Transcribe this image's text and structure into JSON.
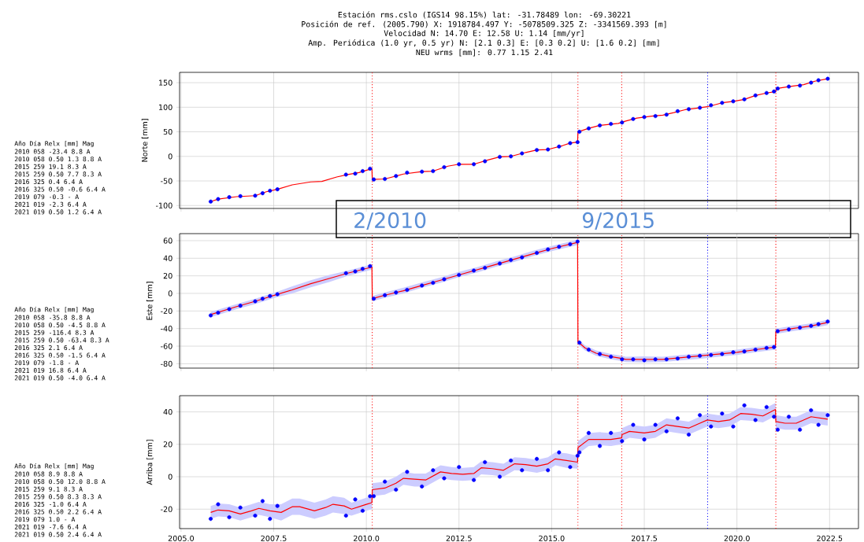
{
  "chart_data": [
    {
      "type": "scatter",
      "title": "Estación rms.cslo (IGS14 98.15%) lat: -31.78489 lon: -69.30221",
      "subtitle": "Posición de ref. (2005.790) X: 1918784.497 Y: -5078509.325 Z: -3341569.393 [m]",
      "ylabel": "Norte [mm]",
      "annotations": [
        "Velocidad N: 14.70 E: 12.58 U: 1.14 [mm/yr]",
        "Amp. Periódica (1.0 yr, 0.5 yr) N: [2.1 0.3] E: [0.3 0.2] U: [1.6 0.2] [mm]",
        "NEU wrms [mm]: 0.77 1.15 2.41",
        "Año Día Relx [mm] Mag",
        "2010 058 -23.4 8.8 A",
        "2010 058 0.50 1.3 8.8 A",
        "2015 259 19.1 8.3 A",
        "2015 259 0.50 7.7 8.3 A",
        "2016 325 0.4 6.4 A",
        "2016 325 0.50 -0.6 6.4 A",
        "2019 079 -0.3 - A",
        "2021 019 -2.3 6.4 A",
        "2021 019 0.50 1.2 6.4 A",
        "2/2010",
        "9/2015"
      ],
      "marker": "circle",
      "xlim": [
        2004.96,
        2023.28
      ],
      "ylim": [
        -106,
        171
      ],
      "xticks": [
        2005,
        2007.5,
        2010,
        2012.5,
        2015,
        2017.5,
        2020,
        2022.5
      ],
      "yticks": [
        -100,
        -50,
        0,
        50,
        100,
        150
      ],
      "tick_labels": "y",
      "grid": true,
      "ref_lines": [
        {
          "axis": "x",
          "value": 2010.16,
          "color": "#ff0000",
          "line_style": "dotted"
        },
        {
          "axis": "x",
          "value": 2015.71,
          "color": "#ff0000",
          "line_style": "dotted"
        },
        {
          "axis": "x",
          "value": 2016.89,
          "color": "#ff0000",
          "line_style": "dotted"
        },
        {
          "axis": "x",
          "value": 2019.21,
          "color": "#0000ff",
          "line_style": "dotted"
        },
        {
          "axis": "x",
          "value": 2021.05,
          "color": "#ff0000",
          "line_style": "dotted"
        }
      ],
      "series": [
        {
          "color": "#0000ff",
          "x": [
            2005.8,
            2006.0,
            2006.3,
            2006.6,
            2007.0,
            2007.2,
            2007.4,
            2007.6,
            2009.45,
            2009.7,
            2009.9,
            2010.1,
            2010.2,
            2010.5,
            2010.8,
            2011.1,
            2011.5,
            2011.8,
            2012.1,
            2012.5,
            2012.9,
            2013.2,
            2013.6,
            2013.9,
            2014.2,
            2014.6,
            2014.9,
            2015.2,
            2015.5,
            2015.7,
            2015.75,
            2016.0,
            2016.3,
            2016.6,
            2016.9,
            2017.2,
            2017.5,
            2017.8,
            2018.1,
            2018.4,
            2018.7,
            2019.0,
            2019.3,
            2019.6,
            2019.9,
            2020.2,
            2020.5,
            2020.8,
            2021.0,
            2021.1,
            2021.4,
            2021.7,
            2022.0,
            2022.2,
            2022.45
          ],
          "values": [
            -92,
            -87,
            -83,
            -81,
            -80,
            -75,
            -70,
            -67,
            -37,
            -35,
            -30,
            -25,
            -47,
            -46,
            -40,
            -33,
            -31,
            -30,
            -22,
            -16,
            -16,
            -10,
            -1,
            0,
            6,
            13,
            14,
            20,
            27,
            29,
            50,
            57,
            63,
            66,
            69,
            76,
            80,
            82,
            85,
            92,
            96,
            99,
            104,
            109,
            112,
            116,
            124,
            129,
            132,
            138,
            142,
            144,
            150,
            155,
            158
          ]
        },
        {
          "type": "line",
          "color": "#ff0000",
          "line_style": "solid",
          "marker": "none",
          "x": [
            2005.8,
            2006.0,
            2006.5,
            2007.0,
            2007.3,
            2007.6,
            2008.0,
            2008.5,
            2008.8,
            2009.2,
            2009.5,
            2009.8,
            2010.15,
            2010.16,
            2010.5,
            2011.0,
            2011.5,
            2011.8,
            2012.2,
            2012.5,
            2012.9,
            2013.3,
            2013.6,
            2013.9,
            2014.3,
            2014.6,
            2014.9,
            2015.3,
            2015.5,
            2015.7,
            2015.71,
            2016.0,
            2016.3,
            2016.8,
            2017.0,
            2017.3,
            2017.7,
            2018.0,
            2018.3,
            2018.6,
            2018.9,
            2019.2,
            2019.6,
            2019.9,
            2020.2,
            2020.5,
            2020.8,
            2021.05,
            2021.06,
            2021.4,
            2021.8,
            2022.1,
            2022.45
          ],
          "values": [
            -92,
            -87,
            -82,
            -80,
            -72,
            -67,
            -58,
            -52,
            -51,
            -42,
            -37,
            -33,
            -25,
            -47,
            -46,
            -36,
            -31,
            -30,
            -20,
            -16,
            -16,
            -7,
            -1,
            0,
            8,
            13,
            14,
            22,
            27,
            29,
            50,
            57,
            63,
            67,
            72,
            78,
            82,
            84,
            89,
            95,
            98,
            101,
            109,
            112,
            116,
            124,
            129,
            132,
            138,
            142,
            146,
            153,
            158
          ]
        }
      ]
    },
    {
      "type": "scatter",
      "ylabel": "Este [mm]",
      "annotations": [
        "Año Día Relx [mm] Mag",
        "2010 058 -35.8 8.8 A",
        "2010 058 0.50 -4.5 8.8 A",
        "2015 259 -116.4 8.3 A",
        "2015 259 0.50 -63.4 8.3 A",
        "2016 325 2.1 6.4 A",
        "2016 325 0.50 -1.5 6.4 A",
        "2019 079 -1.8 - A",
        "2021 019 16.8 6.4 A",
        "2021 019 0.50 -4.0 6.4 A"
      ],
      "marker": "circle",
      "xlim": [
        2004.96,
        2023.28
      ],
      "ylim": [
        -85,
        68
      ],
      "xticks": [
        2005,
        2007.5,
        2010,
        2012.5,
        2015,
        2017.5,
        2020,
        2022.5
      ],
      "yticks": [
        -80,
        -60,
        -40,
        -20,
        0,
        20,
        40,
        60
      ],
      "tick_labels": "y",
      "grid": true,
      "ref_lines": [
        {
          "axis": "x",
          "value": 2010.16,
          "color": "#ff0000",
          "line_style": "dotted"
        },
        {
          "axis": "x",
          "value": 2015.71,
          "color": "#ff0000",
          "line_style": "dotted"
        },
        {
          "axis": "x",
          "value": 2016.89,
          "color": "#ff0000",
          "line_style": "dotted"
        },
        {
          "axis": "x",
          "value": 2019.21,
          "color": "#0000ff",
          "line_style": "dotted"
        },
        {
          "axis": "x",
          "value": 2021.05,
          "color": "#ff0000",
          "line_style": "dotted"
        }
      ],
      "series": [
        {
          "color": "#0000ff",
          "x": [
            2005.8,
            2006.0,
            2006.3,
            2006.6,
            2007.0,
            2007.2,
            2007.4,
            2007.6,
            2009.45,
            2009.7,
            2009.9,
            2010.1,
            2010.2,
            2010.5,
            2010.8,
            2011.1,
            2011.5,
            2011.8,
            2012.1,
            2012.5,
            2012.9,
            2013.2,
            2013.6,
            2013.9,
            2014.2,
            2014.6,
            2014.9,
            2015.2,
            2015.5,
            2015.7,
            2015.75,
            2016.0,
            2016.3,
            2016.6,
            2016.9,
            2017.2,
            2017.5,
            2017.8,
            2018.1,
            2018.4,
            2018.7,
            2019.0,
            2019.3,
            2019.6,
            2019.9,
            2020.2,
            2020.5,
            2020.8,
            2021.0,
            2021.1,
            2021.4,
            2021.7,
            2022.0,
            2022.2,
            2022.45
          ],
          "values": [
            -25,
            -22,
            -18,
            -14,
            -9,
            -6,
            -3,
            -1,
            23,
            25,
            28,
            31,
            -6,
            -2,
            1,
            4,
            9,
            12,
            16,
            21,
            26,
            29,
            34,
            38,
            41,
            46,
            50,
            53,
            56,
            59,
            -56,
            -64,
            -69,
            -72,
            -75,
            -75,
            -76,
            -75,
            -75,
            -74,
            -72,
            -71,
            -70,
            -69,
            -67,
            -66,
            -64,
            -62,
            -61,
            -43,
            -41,
            -39,
            -37,
            -35,
            -32
          ]
        },
        {
          "type": "line",
          "color": "#ff0000",
          "line_style": "solid",
          "marker": "none",
          "x": [
            2005.8,
            2006.5,
            2007.0,
            2007.6,
            2008.0,
            2008.5,
            2009.0,
            2009.5,
            2010.15,
            2010.16,
            2010.5,
            2011.0,
            2011.5,
            2012.0,
            2012.5,
            2013.0,
            2013.5,
            2014.0,
            2014.5,
            2015.0,
            2015.7,
            2015.71,
            2015.9,
            2016.2,
            2016.6,
            2016.89,
            2017.0,
            2017.5,
            2018.0,
            2018.5,
            2019.0,
            2019.5,
            2020.0,
            2020.5,
            2021.04,
            2021.05,
            2021.5,
            2022.0,
            2022.45
          ],
          "values": [
            -24,
            -15,
            -9,
            -1,
            4,
            11,
            17,
            23,
            30,
            -6,
            -2,
            3,
            9,
            15,
            21,
            27,
            33,
            39,
            45,
            51,
            58,
            -55,
            -62,
            -68,
            -72,
            -74,
            -75,
            -75,
            -75,
            -73,
            -71,
            -69,
            -67,
            -64,
            -61,
            -43,
            -40,
            -37,
            -33
          ],
          "lower": [
            -27,
            -18,
            -12,
            -4,
            0,
            7,
            13,
            20,
            27,
            -9,
            -5,
            0,
            6.5,
            12,
            18.5,
            24,
            30.5,
            36,
            42.5,
            48,
            55,
            -58,
            -65,
            -71,
            -75,
            -77,
            -78,
            -78.5,
            -78,
            -76,
            -74.5,
            -72,
            -70,
            -67,
            -64,
            -46,
            -43,
            -40,
            -36
          ],
          "upper": [
            -21,
            -12,
            -6,
            2,
            8,
            15,
            21,
            26,
            33,
            -3,
            1,
            6.5,
            12.5,
            18,
            24.5,
            30,
            36.5,
            42,
            48.5,
            54,
            61,
            -52,
            -59,
            -65,
            -69,
            -71,
            -72,
            -71.5,
            -72,
            -70,
            -68.5,
            -66,
            -64,
            -61,
            -58,
            -40,
            -37,
            -34,
            -30
          ]
        }
      ]
    },
    {
      "type": "scatter",
      "ylabel": "Arriba [mm]",
      "annotations": [
        "Año Día Relx [mm] Mag",
        "2010 058 8.9 8.8 A",
        "2010 058 0.50 12.0 8.8 A",
        "2015 259 9.1 8.3 A",
        "2015 259 0.50 8.3 8.3 A",
        "2016 325 -1.0 6.4 A",
        "2016 325 0.50 2.2 6.4 A",
        "2019 079 1.0 - A",
        "2021 019 -7.6 6.4 A",
        "2021 019 0.50 2.4 6.4 A"
      ],
      "marker": "circle",
      "xlim": [
        2004.96,
        2023.28
      ],
      "ylim": [
        -32,
        50
      ],
      "xticks": [
        {
          "value": 2005,
          "label": "2005.0"
        },
        {
          "value": 2007.5,
          "label": "2007.5"
        },
        {
          "value": 2010,
          "label": "2010.0"
        },
        {
          "value": 2012.5,
          "label": "2012.5"
        },
        {
          "value": 2015,
          "label": "2015.0"
        },
        {
          "value": 2017.5,
          "label": "2017.5"
        },
        {
          "value": 2020,
          "label": "2020.0"
        },
        {
          "value": 2022.5,
          "label": "2022.5"
        }
      ],
      "yticks": [
        -20,
        0,
        20,
        40
      ],
      "grid": true,
      "ref_lines": [
        {
          "axis": "x",
          "value": 2010.16,
          "color": "#ff0000",
          "line_style": "dotted"
        },
        {
          "axis": "x",
          "value": 2015.71,
          "color": "#ff0000",
          "line_style": "dotted"
        },
        {
          "axis": "x",
          "value": 2016.89,
          "color": "#ff0000",
          "line_style": "dotted"
        },
        {
          "axis": "x",
          "value": 2019.21,
          "color": "#0000ff",
          "line_style": "dotted"
        },
        {
          "axis": "x",
          "value": 2021.05,
          "color": "#ff0000",
          "line_style": "dotted"
        }
      ],
      "series": [
        {
          "color": "#0000ff",
          "x": [
            2005.8,
            2006.0,
            2006.3,
            2006.6,
            2007.0,
            2007.2,
            2007.4,
            2007.6,
            2009.45,
            2009.7,
            2009.9,
            2010.1,
            2010.2,
            2010.5,
            2010.8,
            2011.1,
            2011.5,
            2011.8,
            2012.1,
            2012.5,
            2012.9,
            2013.2,
            2013.6,
            2013.9,
            2014.2,
            2014.6,
            2014.9,
            2015.2,
            2015.5,
            2015.7,
            2015.75,
            2016.0,
            2016.3,
            2016.6,
            2016.9,
            2017.2,
            2017.5,
            2017.8,
            2018.1,
            2018.4,
            2018.7,
            2019.0,
            2019.3,
            2019.6,
            2019.9,
            2020.2,
            2020.5,
            2020.8,
            2021.0,
            2021.1,
            2021.4,
            2021.7,
            2022.0,
            2022.2,
            2022.45
          ],
          "values": [
            -26,
            -17,
            -25,
            -19,
            -24,
            -15,
            -26,
            -18,
            -24,
            -14,
            -21,
            -12,
            -12,
            -3,
            -8,
            3,
            -6,
            4,
            -1,
            6,
            -2,
            9,
            0,
            10,
            4,
            11,
            4,
            15,
            6,
            13,
            15,
            27,
            19,
            27,
            22,
            32,
            23,
            32,
            28,
            36,
            26,
            38,
            31,
            39,
            31,
            44,
            35,
            43,
            37,
            29,
            37,
            29,
            41,
            32,
            38
          ]
        },
        {
          "type": "line",
          "color": "#ff0000",
          "line_style": "solid",
          "marker": "none",
          "x": [
            2005.8,
            2006.0,
            2006.3,
            2006.6,
            2006.9,
            2007.1,
            2007.4,
            2007.7,
            2008.0,
            2008.2,
            2008.6,
            2008.9,
            2009.1,
            2009.4,
            2009.6,
            2010.0,
            2010.15,
            2010.16,
            2010.5,
            2010.8,
            2011.0,
            2011.3,
            2011.6,
            2012.0,
            2012.3,
            2012.6,
            2012.9,
            2013.1,
            2013.4,
            2013.7,
            2014.0,
            2014.3,
            2014.6,
            2014.9,
            2015.1,
            2015.4,
            2015.7,
            2015.71,
            2016.0,
            2016.3,
            2016.6,
            2016.89,
            2016.9,
            2017.1,
            2017.5,
            2017.8,
            2018.1,
            2018.4,
            2018.7,
            2019.0,
            2019.2,
            2019.5,
            2019.8,
            2020.1,
            2020.4,
            2020.7,
            2021.04,
            2021.05,
            2021.3,
            2021.6,
            2022.0,
            2022.45
          ],
          "values": [
            -22,
            -20.5,
            -21,
            -23,
            -21,
            -19.5,
            -21,
            -22,
            -18.5,
            -18.5,
            -21,
            -19,
            -17,
            -18,
            -20,
            -17,
            -16,
            -8,
            -7,
            -4,
            -1,
            -1.5,
            -2,
            3,
            2,
            1.5,
            2,
            5.5,
            5,
            4,
            8,
            7.5,
            6.5,
            8,
            11,
            10,
            9,
            18,
            23,
            23,
            23,
            24,
            26,
            28,
            27,
            28,
            32,
            31,
            30,
            33,
            35,
            34,
            35,
            39,
            38.5,
            37.5,
            41.5,
            34,
            33,
            33,
            37,
            35.5
          ],
          "lower": [
            -26,
            -24.5,
            -25,
            -27,
            -25,
            -23.5,
            -25,
            -27,
            -23.5,
            -23.5,
            -26,
            -24,
            -22,
            -23,
            -24,
            -21,
            -20,
            -12,
            -11,
            -8,
            -5,
            -6,
            -6,
            -1,
            -2,
            -2.5,
            -2,
            1.5,
            1,
            0,
            4,
            3.5,
            2.5,
            4,
            7,
            5.5,
            5,
            14,
            19,
            19.5,
            19,
            20,
            22,
            24,
            23,
            24,
            28,
            27,
            26,
            29,
            31,
            30,
            31,
            35,
            34.5,
            33.5,
            37.5,
            30,
            29,
            29,
            33,
            31.5
          ],
          "upper": [
            -18,
            -16.5,
            -17,
            -19,
            -17,
            -15.5,
            -17,
            -17,
            -13.5,
            -13.5,
            -16,
            -14,
            -12,
            -13,
            -16,
            -13,
            -12,
            -4,
            -3,
            0,
            3,
            2,
            2,
            7,
            6,
            5.5,
            6,
            9.5,
            9,
            8,
            12,
            11.5,
            10.5,
            12,
            15,
            14.5,
            13,
            22,
            27,
            27.5,
            27,
            28,
            30,
            32,
            31,
            32,
            36,
            35,
            34,
            37,
            39,
            38,
            39,
            43,
            42.5,
            41.5,
            45.5,
            38,
            37,
            37,
            41,
            39.5
          ]
        }
      ]
    }
  ]
}
